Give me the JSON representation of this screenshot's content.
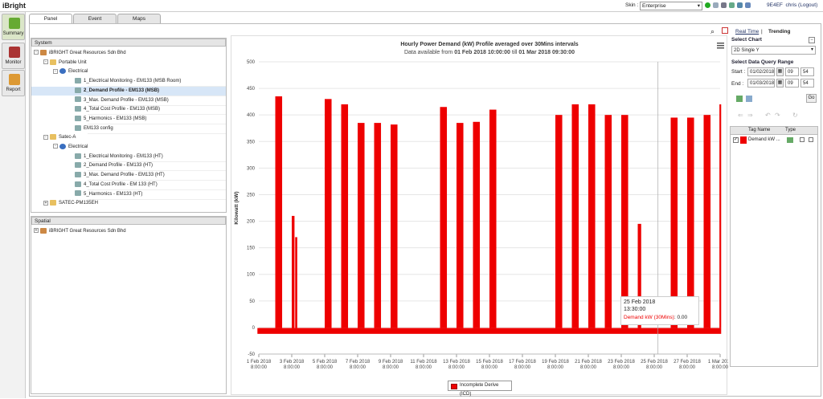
{
  "app": {
    "logo": "iBright",
    "skin_label": "Skin :",
    "skin_value": "Enterprise",
    "user_id": "9E4EF",
    "user_name": "chris",
    "logout": "(Logout)"
  },
  "nav": [
    {
      "label": "Summary",
      "active": true
    },
    {
      "label": "Monitor",
      "active": false
    },
    {
      "label": "Report",
      "active": false
    }
  ],
  "tabs": [
    "Panel",
    "Event",
    "Maps"
  ],
  "system": {
    "title": "System",
    "items": [
      {
        "label": "iBRIGHT Great Resources Sdn Bhd",
        "level": 0,
        "exp": "-",
        "icon": "home",
        "sel": false
      },
      {
        "label": "Portable Unit",
        "level": 1,
        "exp": "-",
        "icon": "folder",
        "sel": false
      },
      {
        "label": "Electrical",
        "level": 2,
        "exp": "-",
        "icon": "gear",
        "sel": false
      },
      {
        "label": "1_Electrical Monitoring - EM133 (MSB Room)",
        "level": 3,
        "exp": "",
        "icon": "page",
        "sel": false
      },
      {
        "label": "2_Demand Profile - EM133 (MSB)",
        "level": 3,
        "exp": "",
        "icon": "page",
        "sel": true
      },
      {
        "label": "3_Max. Demand Profile - EM133 (MSB)",
        "level": 3,
        "exp": "",
        "icon": "page",
        "sel": false
      },
      {
        "label": "4_Total Cost Profile - EM133 (MSB)",
        "level": 3,
        "exp": "",
        "icon": "page",
        "sel": false
      },
      {
        "label": "5_Harmonics - EM133 (MSB)",
        "level": 3,
        "exp": "",
        "icon": "page",
        "sel": false
      },
      {
        "label": "EM133 config",
        "level": 3,
        "exp": "",
        "icon": "page",
        "sel": false
      },
      {
        "label": "Satec-A",
        "level": 1,
        "exp": "-",
        "icon": "folder",
        "sel": false
      },
      {
        "label": "Electrical",
        "level": 2,
        "exp": "-",
        "icon": "gear",
        "sel": false
      },
      {
        "label": "1_Electrical Monitoring - EM133 (HT)",
        "level": 3,
        "exp": "",
        "icon": "page",
        "sel": false
      },
      {
        "label": "2_Demand Profile - EM133 (HT)",
        "level": 3,
        "exp": "",
        "icon": "page",
        "sel": false
      },
      {
        "label": "3_Max. Demand Profile - EM133 (HT)",
        "level": 3,
        "exp": "",
        "icon": "page",
        "sel": false
      },
      {
        "label": "4_Total Cost Profile - EM 133 (HT)",
        "level": 3,
        "exp": "",
        "icon": "page",
        "sel": false
      },
      {
        "label": "5_Harmonics - EM133 (HT)",
        "level": 3,
        "exp": "",
        "icon": "page",
        "sel": false
      },
      {
        "label": "SATEC-PM135EH",
        "level": 1,
        "exp": "+",
        "icon": "folder",
        "sel": false
      }
    ]
  },
  "spatial": {
    "title": "Spatial",
    "items": [
      {
        "label": "iBRIGHT Great Resources Sdn Bhd"
      }
    ]
  },
  "chart_data": {
    "type": "bar",
    "title": "Hourly Power Demand (kW) Profile averaged over 30Mins intervals",
    "subtitle_parts": [
      "Data available from ",
      "01 Feb 2018 10:00:00",
      " till ",
      "01 Mar 2018 09:30:00"
    ],
    "ylabel": "Kilowatt (kW)",
    "xlabel": "",
    "ylim": [
      -50,
      500
    ],
    "yticks": [
      -50,
      0,
      50,
      100,
      150,
      200,
      250,
      300,
      350,
      400,
      450,
      500
    ],
    "xtick_labels": [
      [
        "1 Feb 2018",
        "8:00:00"
      ],
      [
        "3 Feb 2018",
        "8:00:00"
      ],
      [
        "5 Feb 2018",
        "8:00:00"
      ],
      [
        "7 Feb 2018",
        "8:00:00"
      ],
      [
        "9 Feb 2018",
        "8:00:00"
      ],
      [
        "11 Feb 2018",
        "8:00:00"
      ],
      [
        "13 Feb 2018",
        "8:00:00"
      ],
      [
        "15 Feb 2018",
        "8:00:00"
      ],
      [
        "17 Feb 2018",
        "8:00:00"
      ],
      [
        "19 Feb 2018",
        "8:00:00"
      ],
      [
        "21 Feb 2018",
        "8:00:00"
      ],
      [
        "23 Feb 2018",
        "8:00:00"
      ],
      [
        "25 Feb 2018",
        "8:00:00"
      ],
      [
        "27 Feb 2018",
        "8:00:00"
      ],
      [
        "1 Mar 2018",
        "8:00:00"
      ]
    ],
    "xdomain": [
      "2018-02-01 08:00",
      "2018-03-01 08:00"
    ],
    "baseline": {
      "x0": "2018-02-01 06:00",
      "x1": "2018-03-01 09:30",
      "value": -1,
      "low": -12
    },
    "series": [
      {
        "name": "Incomplete Derive (ICD)",
        "color": "#ee0000",
        "blocks": [
          {
            "x0": "2018-02-02 08:00",
            "x1": "2018-02-02 18:00",
            "peak": 435
          },
          {
            "x0": "2018-02-03 08:00",
            "x1": "2018-02-03 12:00",
            "peak": 210
          },
          {
            "x0": "2018-02-03 13:00",
            "x1": "2018-02-03 16:00",
            "peak": 170
          },
          {
            "x0": "2018-02-05 08:00",
            "x1": "2018-02-05 18:00",
            "peak": 430
          },
          {
            "x0": "2018-02-06 08:00",
            "x1": "2018-02-06 18:00",
            "peak": 420
          },
          {
            "x0": "2018-02-07 08:00",
            "x1": "2018-02-07 18:00",
            "peak": 385
          },
          {
            "x0": "2018-02-08 08:00",
            "x1": "2018-02-08 18:00",
            "peak": 385
          },
          {
            "x0": "2018-02-09 08:00",
            "x1": "2018-02-09 18:00",
            "peak": 382
          },
          {
            "x0": "2018-02-12 08:00",
            "x1": "2018-02-12 18:00",
            "peak": 415
          },
          {
            "x0": "2018-02-13 08:00",
            "x1": "2018-02-13 18:00",
            "peak": 385
          },
          {
            "x0": "2018-02-14 08:00",
            "x1": "2018-02-14 18:00",
            "peak": 387
          },
          {
            "x0": "2018-02-15 08:00",
            "x1": "2018-02-15 18:00",
            "peak": 410
          },
          {
            "x0": "2018-02-19 08:00",
            "x1": "2018-02-19 18:00",
            "peak": 400
          },
          {
            "x0": "2018-02-20 08:00",
            "x1": "2018-02-20 18:00",
            "peak": 420
          },
          {
            "x0": "2018-02-21 08:00",
            "x1": "2018-02-21 18:00",
            "peak": 420
          },
          {
            "x0": "2018-02-22 08:00",
            "x1": "2018-02-22 18:00",
            "peak": 400
          },
          {
            "x0": "2018-02-23 08:00",
            "x1": "2018-02-23 18:00",
            "peak": 400
          },
          {
            "x0": "2018-02-24 08:00",
            "x1": "2018-02-24 13:00",
            "peak": 195
          },
          {
            "x0": "2018-02-26 08:00",
            "x1": "2018-02-26 18:00",
            "peak": 395
          },
          {
            "x0": "2018-02-27 08:00",
            "x1": "2018-02-27 18:00",
            "peak": 395
          },
          {
            "x0": "2018-02-28 08:00",
            "x1": "2018-02-28 18:00",
            "peak": 400
          },
          {
            "x0": "2018-03-01 07:00",
            "x1": "2018-03-01 09:30",
            "peak": 420
          }
        ]
      }
    ],
    "legend_position": "bottom-center",
    "grid": true,
    "tooltip": {
      "date": "25 Feb 2018",
      "time": "13:30:00",
      "series": "Demand kW (30Mins)",
      "value": "0.00",
      "x": "2018-02-25 13:30"
    }
  },
  "right": {
    "realtime": "Real Time",
    "separator": "|",
    "trending": "Trending",
    "select_chart": "Select Chart",
    "chart_type": "2D Single Y",
    "range_label": "Select Data Query Range",
    "start_label": "Start :",
    "start_date": "01/02/2018",
    "start_hour": "09",
    "start_min": "54",
    "end_label": "End :",
    "end_date": "01/03/2018",
    "end_hour": "09",
    "end_min": "54",
    "go": "Go",
    "grid_headers": [
      "Tag Name",
      "Type"
    ],
    "tags": [
      {
        "name": "Demand kW ...",
        "color": "#ee0000"
      }
    ]
  }
}
